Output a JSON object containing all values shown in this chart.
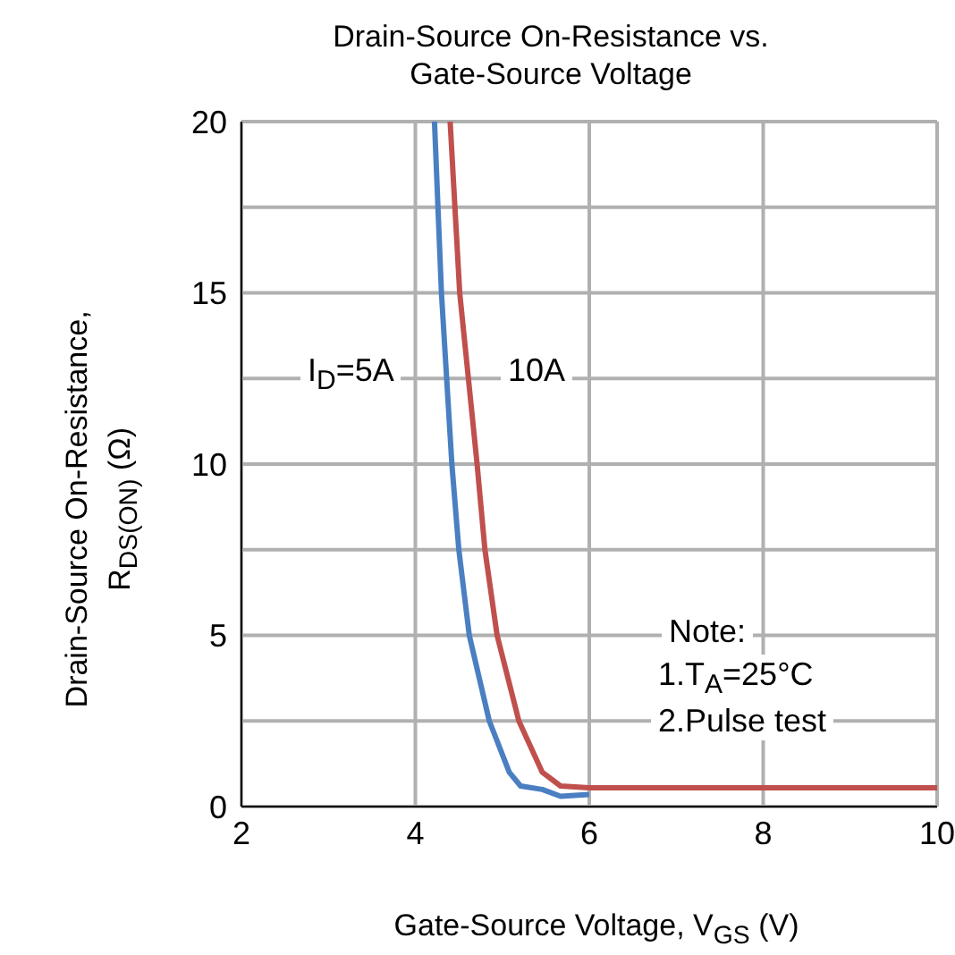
{
  "chart_data": {
    "type": "line",
    "title": "Drain-Source On-Resistance vs. Gate-Source Voltage",
    "xlabel": "Gate-Source Voltage, V$_{GS}$ (V)",
    "ylabel": "Drain-Source On-Resistance, R$_{DS(ON)}$ (Ω)",
    "series": [
      {
        "color": "#4a7fc1",
        "x": [
          4.22,
          4.3,
          4.42,
          4.5,
          4.62,
          4.85,
          5.08,
          5.21,
          5.46,
          5.67,
          6.0
        ],
        "values": [
          20,
          15,
          10,
          7.5,
          5,
          2.5,
          1.0,
          0.6,
          0.5,
          0.3,
          0.35
        ]
      },
      {
        "color": "#c0504d",
        "x": [
          4.4,
          4.51,
          4.71,
          4.8,
          4.94,
          5.19,
          5.46,
          5.67,
          6.0,
          7,
          8,
          9,
          10
        ],
        "values": [
          20,
          15,
          10,
          7.5,
          5,
          2.5,
          1.0,
          0.6,
          0.55,
          0.55,
          0.55,
          0.55,
          0.55
        ]
      }
    ],
    "annotations": [
      "I$_{D}$=5A",
      "10A",
      "Note:",
      "1.T$_{A}$=25°C",
      "2.Pulse test"
    ],
    "xlim": [
      2,
      10
    ],
    "xticks": [
      2,
      4,
      6,
      8,
      10
    ],
    "ylim": [
      0,
      20
    ],
    "yticks": [
      0,
      {
        "value": 2.5,
        "label": null
      },
      5,
      {
        "value": 7.5,
        "label": null
      },
      10,
      {
        "value": 12.5,
        "label": null
      },
      15,
      {
        "value": 17.5,
        "label": null
      },
      20
    ],
    "grid": true,
    "legend": false,
    "marker": "none",
    "line_style": "solid"
  }
}
